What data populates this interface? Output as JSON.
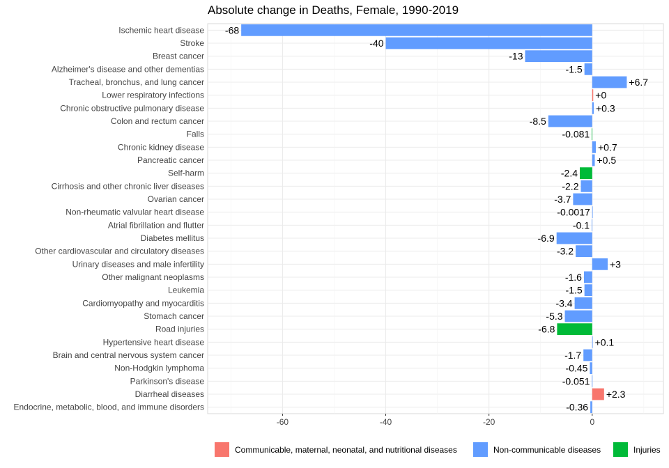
{
  "chart_data": {
    "type": "bar",
    "orientation": "horizontal",
    "title": "Absolute change in Deaths, Female, 1990-2019",
    "xlabel": "",
    "ylabel": "",
    "xlim": [
      -74.5,
      13.8
    ],
    "xticks": [
      -60,
      -40,
      -20,
      0
    ],
    "grid": true,
    "legend_position": "bottom",
    "groups": [
      {
        "name": "Communicable, maternal, neonatal, and nutritional diseases",
        "color": "#F8766D"
      },
      {
        "name": "Non-communicable diseases",
        "color": "#619CFF"
      },
      {
        "name": "Injuries",
        "color": "#00BA38"
      }
    ],
    "bars": [
      {
        "category": "Ischemic heart disease",
        "value": -68,
        "label": "-68",
        "group": 1
      },
      {
        "category": "Stroke",
        "value": -40,
        "label": "-40",
        "group": 1
      },
      {
        "category": "Breast cancer",
        "value": -13,
        "label": "-13",
        "group": 1
      },
      {
        "category": "Alzheimer's disease and other dementias",
        "value": -1.5,
        "label": "-1.5",
        "group": 1
      },
      {
        "category": "Tracheal, bronchus, and lung cancer",
        "value": 6.7,
        "label": "+6.7",
        "group": 1
      },
      {
        "category": "Lower respiratory infections",
        "value": 0.2,
        "label": "+0",
        "group": 0
      },
      {
        "category": "Chronic obstructive pulmonary disease",
        "value": 0.3,
        "label": "+0.3",
        "group": 1
      },
      {
        "category": "Colon and rectum cancer",
        "value": -8.5,
        "label": "-8.5",
        "group": 1
      },
      {
        "category": "Falls",
        "value": -0.081,
        "label": "-0.081",
        "group": 2
      },
      {
        "category": "Chronic kidney disease",
        "value": 0.7,
        "label": "+0.7",
        "group": 1
      },
      {
        "category": "Pancreatic cancer",
        "value": 0.5,
        "label": "+0.5",
        "group": 1
      },
      {
        "category": "Self-harm",
        "value": -2.4,
        "label": "-2.4",
        "group": 2
      },
      {
        "category": "Cirrhosis and other chronic liver diseases",
        "value": -2.2,
        "label": "-2.2",
        "group": 1
      },
      {
        "category": "Ovarian cancer",
        "value": -3.7,
        "label": "-3.7",
        "group": 1
      },
      {
        "category": "Non-rheumatic valvular heart disease",
        "value": -0.0017,
        "label": "-0.0017",
        "group": 1
      },
      {
        "category": "Atrial fibrillation and flutter",
        "value": -0.1,
        "label": "-0.1",
        "group": 1
      },
      {
        "category": "Diabetes mellitus",
        "value": -6.9,
        "label": "-6.9",
        "group": 1
      },
      {
        "category": "Other cardiovascular and circulatory diseases",
        "value": -3.2,
        "label": "-3.2",
        "group": 1
      },
      {
        "category": "Urinary diseases and male infertility",
        "value": 3,
        "label": "+3",
        "group": 1
      },
      {
        "category": "Other malignant neoplasms",
        "value": -1.6,
        "label": "-1.6",
        "group": 1
      },
      {
        "category": "Leukemia",
        "value": -1.5,
        "label": "-1.5",
        "group": 1
      },
      {
        "category": "Cardiomyopathy and myocarditis",
        "value": -3.4,
        "label": "-3.4",
        "group": 1
      },
      {
        "category": "Stomach cancer",
        "value": -5.3,
        "label": "-5.3",
        "group": 1
      },
      {
        "category": "Road injuries",
        "value": -6.8,
        "label": "-6.8",
        "group": 2
      },
      {
        "category": "Hypertensive heart disease",
        "value": 0.1,
        "label": "+0.1",
        "group": 1
      },
      {
        "category": "Brain and central nervous system cancer",
        "value": -1.7,
        "label": "-1.7",
        "group": 1
      },
      {
        "category": "Non-Hodgkin lymphoma",
        "value": -0.45,
        "label": "-0.45",
        "group": 1
      },
      {
        "category": "Parkinson's disease",
        "value": -0.051,
        "label": "-0.051",
        "group": 1
      },
      {
        "category": "Diarrheal diseases",
        "value": 2.3,
        "label": "+2.3",
        "group": 0
      },
      {
        "category": "Endocrine, metabolic, blood, and immune disorders",
        "value": -0.36,
        "label": "-0.36",
        "group": 1
      }
    ]
  }
}
